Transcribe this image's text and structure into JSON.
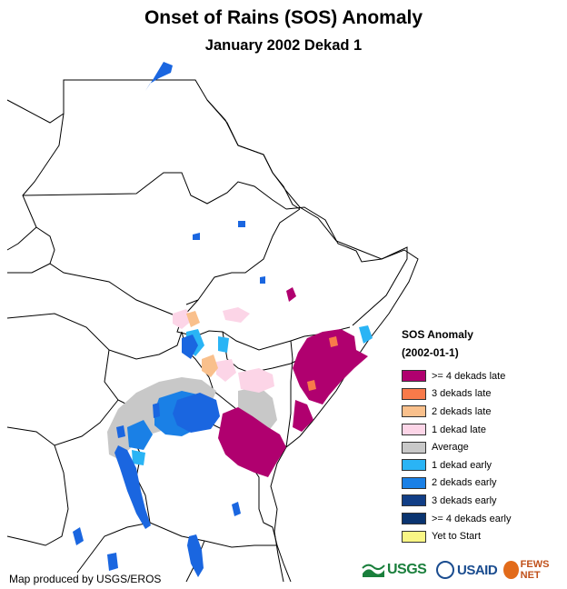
{
  "header": {
    "title": "Onset of Rains (SOS) Anomaly",
    "subtitle": "January 2002 Dekad 1"
  },
  "legend": {
    "title": "SOS Anomaly",
    "period": "(2002-01-1)",
    "items": [
      {
        "label": ">= 4 dekads late",
        "color": "#b0006f"
      },
      {
        "label": "3 dekads late",
        "color": "#f97a4a"
      },
      {
        "label": "2 dekads late",
        "color": "#f9c08c"
      },
      {
        "label": "1 dekad late",
        "color": "#fcd5e7"
      },
      {
        "label": "Average",
        "color": "#c8c8c8"
      },
      {
        "label": "1 dekad early",
        "color": "#2ab4f5"
      },
      {
        "label": "2 dekads early",
        "color": "#1a80e6"
      },
      {
        "label": "3 dekads early",
        "color": "#113e86"
      },
      {
        "label": ">= 4 dekads early",
        "color": "#0a3470"
      },
      {
        "label": "Yet to Start",
        "color": "#f9f685"
      }
    ]
  },
  "credit": "Map produced by USGS/EROS",
  "logos": {
    "usgs": "USGS",
    "usaid": "USAID",
    "fews": "FEWS NET"
  },
  "colors": {
    "water": "#1a66e0",
    "boundary": "#000000",
    "background": "#ffffff"
  }
}
